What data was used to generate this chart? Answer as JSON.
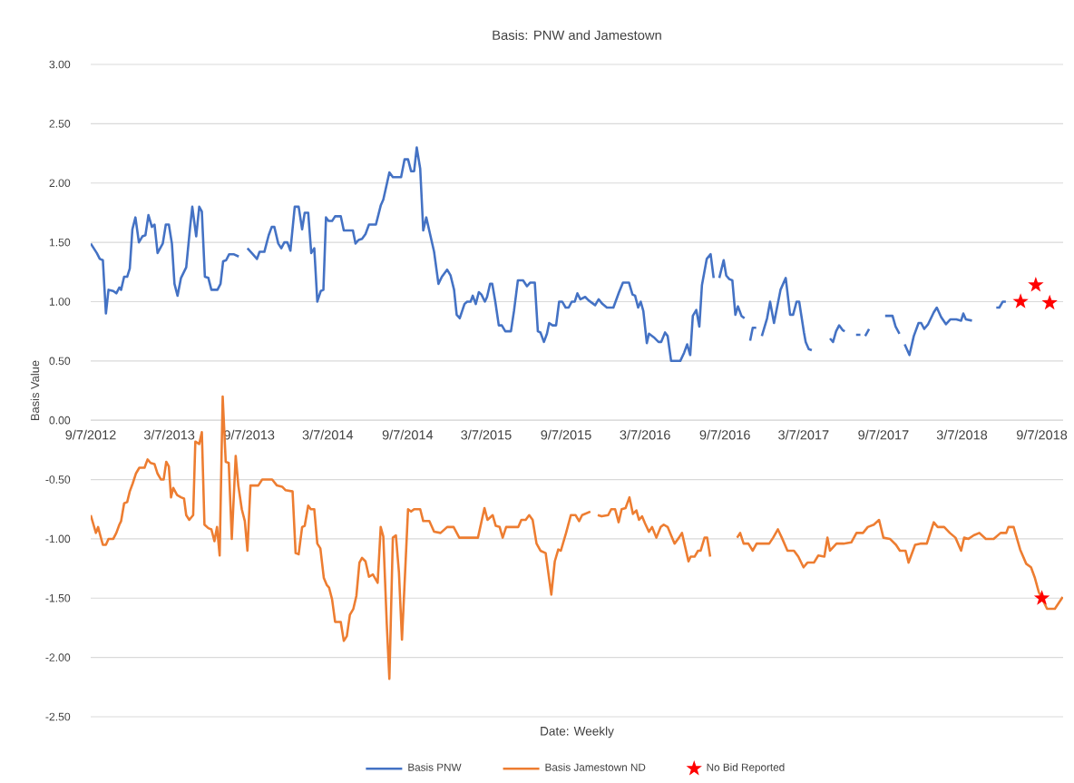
{
  "chart_data": {
    "type": "line",
    "title": "Basis: PNW and Jamestown",
    "xlabel": "Date: Weekly",
    "ylabel": "Basis Value",
    "xlim": [
      "2012-09-07",
      "2018-10-26"
    ],
    "ylim": [
      -2.5,
      3.0
    ],
    "xticks": [
      {
        "value": "2012-09-07",
        "label": "9/7/2012"
      },
      {
        "value": "2013-03-07",
        "label": "3/7/2013"
      },
      {
        "value": "2013-09-07",
        "label": "9/7/2013"
      },
      {
        "value": "2014-03-07",
        "label": "3/7/2014"
      },
      {
        "value": "2014-09-07",
        "label": "9/7/2014"
      },
      {
        "value": "2015-03-07",
        "label": "3/7/2015"
      },
      {
        "value": "2015-09-07",
        "label": "9/7/2015"
      },
      {
        "value": "2016-03-07",
        "label": "3/7/2016"
      },
      {
        "value": "2016-09-07",
        "label": "9/7/2016"
      },
      {
        "value": "2017-03-07",
        "label": "3/7/2017"
      },
      {
        "value": "2017-09-07",
        "label": "9/7/2017"
      },
      {
        "value": "2018-03-07",
        "label": "3/7/2018"
      },
      {
        "value": "2018-09-07",
        "label": "9/7/2018"
      }
    ],
    "yticks": [
      {
        "value": -2.5,
        "label": "-2.50"
      },
      {
        "value": -2.0,
        "label": "-2.00"
      },
      {
        "value": -1.5,
        "label": "-1.50"
      },
      {
        "value": -1.0,
        "label": "-1.00"
      },
      {
        "value": -0.5,
        "label": "-0.50"
      },
      {
        "value": 0,
        "label": "0.00"
      },
      {
        "value": 0.5,
        "label": "0.50"
      },
      {
        "value": 1.0,
        "label": "1.00"
      },
      {
        "value": 1.5,
        "label": "1.50"
      },
      {
        "value": 2.0,
        "label": "2.00"
      },
      {
        "value": 2.5,
        "label": "2.50"
      },
      {
        "value": 3.0,
        "label": "3.00"
      }
    ],
    "grid": "y",
    "legend": "bottom",
    "series": [
      {
        "type": "line",
        "name": "Basis PNW",
        "color": "#4472c4",
        "x": [
          "2012-09-07",
          "2012-09-21",
          "2012-09-28",
          "2012-10-05",
          "2012-10-12",
          "2012-10-18",
          "2012-10-29",
          "2012-11-05",
          "2012-11-12",
          "2012-11-16",
          "2012-11-23",
          "2012-11-30",
          "2012-12-06",
          "2012-12-12",
          "2012-12-19",
          "2012-12-27",
          "2013-01-04",
          "2013-01-11",
          "2013-01-18",
          "2013-01-26",
          "2013-02-01",
          "2013-02-08",
          "2013-02-20",
          "2013-02-27",
          "2013-03-06",
          "2013-03-13",
          "2013-03-19",
          "2013-03-26",
          "2013-04-03",
          "2013-04-15",
          "2013-04-24",
          "2013-04-29",
          "2013-05-08",
          "2013-05-15",
          "2013-05-21",
          "2013-05-28",
          "2013-06-05",
          "2013-06-12",
          "2013-06-26",
          "2013-07-03",
          "2013-07-09",
          "2013-07-16",
          "2013-07-23",
          "2013-08-02",
          "2013-08-14",
          "2013-08-28",
          "2013-09-03",
          "2013-09-13",
          "2013-09-25",
          "2013-10-01",
          "2013-10-12",
          "2013-10-22",
          "2013-10-29",
          "2013-11-04",
          "2013-11-13",
          "2013-11-20",
          "2013-11-27",
          "2013-12-04",
          "2013-12-11",
          "2013-12-21",
          "2013-12-30",
          "2014-01-07",
          "2014-01-13",
          "2014-01-21",
          "2014-01-28",
          "2014-02-04",
          "2014-02-11",
          "2014-02-19",
          "2014-02-25",
          "2014-03-03",
          "2014-03-09",
          "2014-03-17",
          "2014-03-24",
          "2014-04-06",
          "2014-04-13",
          "2014-05-04",
          "2014-05-10",
          "2014-05-17",
          "2014-05-25",
          "2014-06-02",
          "2014-06-10",
          "2014-06-26",
          "2014-07-07",
          "2014-07-13",
          "2014-07-21",
          "2014-07-27",
          "2014-08-04",
          "2014-08-23",
          "2014-08-31",
          "2014-09-08",
          "2014-09-15",
          "2014-09-22",
          "2014-09-28",
          "2014-10-06",
          "2014-10-13",
          "2014-10-20",
          "2014-11-07",
          "2014-11-17",
          "2014-11-25",
          "2014-12-07",
          "2014-12-15",
          "2014-12-23",
          "2014-12-29",
          "2015-01-05",
          "2015-01-16",
          "2015-01-22",
          "2015-01-30",
          "2015-02-04",
          "2015-02-11",
          "2015-02-18",
          "2015-02-24",
          "2015-03-04",
          "2015-03-09",
          "2015-03-16",
          "2015-03-21",
          "2015-03-28",
          "2015-04-05",
          "2015-04-12",
          "2015-04-20",
          "2015-05-03",
          "2015-05-10",
          "2015-05-19",
          "2015-05-31",
          "2015-06-09",
          "2015-06-16",
          "2015-06-27",
          "2015-07-04",
          "2015-07-10",
          "2015-07-18",
          "2015-07-25",
          "2015-07-30",
          "2015-08-07",
          "2015-08-15",
          "2015-08-22",
          "2015-08-29",
          "2015-09-06",
          "2015-09-13",
          "2015-09-20",
          "2015-09-27",
          "2015-10-03",
          "2015-10-10",
          "2015-10-21",
          "2015-10-29",
          "2015-11-13",
          "2015-11-21",
          "2015-11-30",
          "2015-12-10",
          "2015-12-25",
          "2016-01-07",
          "2016-01-16",
          "2016-01-30",
          "2016-02-07",
          "2016-02-13",
          "2016-02-20",
          "2016-02-26",
          "2016-03-03",
          "2016-03-11",
          "2016-03-16",
          "2016-03-27",
          "2016-04-07",
          "2016-04-13",
          "2016-04-22",
          "2016-04-28",
          "2016-05-06",
          "2016-05-27",
          "2016-06-05",
          "2016-06-12",
          "2016-06-19",
          "2016-06-25",
          "2016-07-03",
          "2016-07-10",
          "2016-07-16",
          "2016-07-27",
          "2016-08-05",
          "2016-08-12",
          "2016-08-19",
          "2016-08-25",
          "2016-09-04",
          "2016-09-10",
          "2016-09-17",
          "2016-09-24",
          "2016-10-01",
          "2016-10-07",
          "2016-10-15",
          "2016-10-22",
          "2016-10-29",
          "2016-11-04",
          "2016-11-10",
          "2016-11-18",
          "2016-11-25",
          "2016-12-01",
          "2016-12-13",
          "2016-12-20",
          "2016-12-29",
          "2017-01-13",
          "2017-01-25",
          "2017-02-04",
          "2017-02-11",
          "2017-02-19",
          "2017-02-25",
          "2017-03-08",
          "2017-03-12",
          "2017-03-19",
          "2017-03-26",
          "2017-04-15",
          "2017-05-07",
          "2017-05-14",
          "2017-05-21",
          "2017-05-28",
          "2017-06-05",
          "2017-06-10",
          "2017-06-24",
          "2017-07-06",
          "2017-07-16",
          "2017-07-21",
          "2017-07-27",
          "2017-08-05",
          "2017-08-25",
          "2017-09-11",
          "2017-09-28",
          "2017-10-05",
          "2017-10-14",
          "2017-10-20",
          "2017-10-26",
          "2017-11-06",
          "2017-11-16",
          "2017-11-27",
          "2017-12-03",
          "2017-12-10",
          "2017-12-19",
          "2018-01-01",
          "2018-01-08",
          "2018-01-18",
          "2018-01-29",
          "2018-02-08",
          "2018-02-22",
          "2018-03-05",
          "2018-03-10",
          "2018-03-16",
          "2018-03-30",
          "2018-04-27",
          "2018-05-25",
          "2018-06-01",
          "2018-06-09",
          "2018-06-16"
        ],
        "values": [
          1.49,
          1.41,
          1.36,
          1.35,
          0.9,
          1.1,
          1.09,
          1.07,
          1.12,
          1.1,
          1.21,
          1.21,
          1.28,
          1.61,
          1.71,
          1.5,
          1.55,
          1.56,
          1.73,
          1.63,
          1.65,
          1.41,
          1.49,
          1.65,
          1.65,
          1.49,
          1.15,
          1.05,
          1.2,
          1.29,
          1.63,
          1.8,
          1.55,
          1.8,
          1.76,
          1.21,
          1.2,
          1.1,
          1.1,
          1.15,
          1.34,
          1.35,
          1.4,
          1.4,
          1.38,
          null,
          1.45,
          1.41,
          1.36,
          1.42,
          1.42,
          1.56,
          1.63,
          1.63,
          1.49,
          1.45,
          1.5,
          1.5,
          1.43,
          1.8,
          1.8,
          1.61,
          1.75,
          1.75,
          1.41,
          1.45,
          1.0,
          1.09,
          1.1,
          1.71,
          1.68,
          1.68,
          1.72,
          1.72,
          1.6,
          1.6,
          1.49,
          1.52,
          1.53,
          1.57,
          1.65,
          1.65,
          1.81,
          1.86,
          1.99,
          2.09,
          2.05,
          2.05,
          2.2,
          2.2,
          2.1,
          2.1,
          2.3,
          2.12,
          1.6,
          1.71,
          1.42,
          1.15,
          1.21,
          1.27,
          1.22,
          1.1,
          0.89,
          0.86,
          0.98,
          1.0,
          1.0,
          1.05,
          0.98,
          1.08,
          1.06,
          1.0,
          1.04,
          1.15,
          1.15,
          1.0,
          0.8,
          0.8,
          0.75,
          0.75,
          0.92,
          1.18,
          1.18,
          1.13,
          1.16,
          1.16,
          0.75,
          0.74,
          0.66,
          0.73,
          0.82,
          0.8,
          0.8,
          1.0,
          1.0,
          0.95,
          0.95,
          1.0,
          1.0,
          1.07,
          1.02,
          1.04,
          1.01,
          0.97,
          1.02,
          0.98,
          0.95,
          0.95,
          1.08,
          1.16,
          1.16,
          1.06,
          1.05,
          0.95,
          1.0,
          0.92,
          0.65,
          0.73,
          0.7,
          0.66,
          0.66,
          0.74,
          0.71,
          0.5,
          0.5,
          0.57,
          0.64,
          0.55,
          0.88,
          0.93,
          0.79,
          1.14,
          1.36,
          1.4,
          1.2,
          null,
          1.2,
          1.35,
          1.22,
          1.19,
          1.18,
          0.89,
          0.96,
          0.88,
          0.86,
          null,
          0.67,
          0.78,
          0.78,
          null,
          0.71,
          0.86,
          1.0,
          0.82,
          1.1,
          1.2,
          0.89,
          0.89,
          1.0,
          1.0,
          0.74,
          0.66,
          0.6,
          0.59,
          null,
          0.69,
          0.66,
          0.75,
          0.8,
          0.76,
          0.75,
          null,
          0.72,
          0.72,
          null,
          0.71,
          0.77,
          null,
          0.88,
          0.88,
          0.79,
          0.73,
          null,
          0.64,
          0.55,
          0.71,
          0.82,
          0.82,
          0.77,
          0.81,
          0.91,
          0.95,
          0.87,
          0.81,
          0.85,
          0.85,
          0.84,
          0.9,
          0.85,
          0.84,
          null,
          0.95,
          0.95,
          1.0,
          1.0
        ]
      },
      {
        "type": "line",
        "name": "Basis Jamestown ND",
        "color": "#ed7d31",
        "x": [
          "2012-09-07",
          "2012-09-19",
          "2012-09-24",
          "2012-09-29",
          "2012-10-05",
          "2012-10-12",
          "2012-10-18",
          "2012-10-29",
          "2012-11-05",
          "2012-11-12",
          "2012-11-16",
          "2012-11-23",
          "2012-11-30",
          "2012-12-06",
          "2012-12-13",
          "2012-12-20",
          "2012-12-28",
          "2013-01-09",
          "2013-01-16",
          "2013-01-23",
          "2013-02-01",
          "2013-02-08",
          "2013-02-16",
          "2013-02-22",
          "2013-02-28",
          "2013-03-06",
          "2013-03-11",
          "2013-03-16",
          "2013-03-25",
          "2013-04-03",
          "2013-04-10",
          "2013-04-15",
          "2013-04-22",
          "2013-05-01",
          "2013-05-06",
          "2013-05-15",
          "2013-05-21",
          "2013-05-27",
          "2013-06-05",
          "2013-06-12",
          "2013-06-19",
          "2013-06-25",
          "2013-07-01",
          "2013-07-08",
          "2013-07-15",
          "2013-07-22",
          "2013-07-29",
          "2013-08-07",
          "2013-08-13",
          "2013-08-21",
          "2013-08-28",
          "2013-09-03",
          "2013-09-10",
          "2013-09-18",
          "2013-09-28",
          "2013-10-07",
          "2013-10-30",
          "2013-11-10",
          "2013-11-22",
          "2013-11-30",
          "2013-12-16",
          "2013-12-23",
          "2013-12-30",
          "2014-01-07",
          "2014-01-13",
          "2014-01-21",
          "2014-01-27",
          "2014-02-04",
          "2014-02-11",
          "2014-02-18",
          "2014-02-26",
          "2014-03-05",
          "2014-03-10",
          "2014-03-17",
          "2014-03-24",
          "2014-04-06",
          "2014-04-13",
          "2014-04-20",
          "2014-04-27",
          "2014-05-05",
          "2014-05-12",
          "2014-05-19",
          "2014-05-25",
          "2014-06-02",
          "2014-06-10",
          "2014-06-19",
          "2014-06-30",
          "2014-07-07",
          "2014-07-13",
          "2014-07-21",
          "2014-07-27",
          "2014-08-04",
          "2014-08-11",
          "2014-08-18",
          "2014-08-25",
          "2014-09-01",
          "2014-09-08",
          "2014-09-15",
          "2014-09-22",
          "2014-10-06",
          "2014-10-13",
          "2014-10-27",
          "2014-11-07",
          "2014-11-22",
          "2014-12-07",
          "2014-12-22",
          "2015-01-04",
          "2015-02-16",
          "2015-03-03",
          "2015-03-10",
          "2015-03-22",
          "2015-03-29",
          "2015-04-07",
          "2015-04-14",
          "2015-04-22",
          "2015-05-20",
          "2015-05-27",
          "2015-06-06",
          "2015-06-14",
          "2015-06-22",
          "2015-07-01",
          "2015-07-10",
          "2015-07-22",
          "2015-08-04",
          "2015-08-12",
          "2015-08-20",
          "2015-08-26",
          "2015-09-07",
          "2015-09-18",
          "2015-09-29",
          "2015-10-07",
          "2015-10-14",
          "2015-11-02",
          "2015-11-09",
          "2015-11-19",
          "2015-11-28",
          "2015-12-13",
          "2015-12-20",
          "2015-12-29",
          "2016-01-06",
          "2016-01-13",
          "2016-01-22",
          "2016-01-31",
          "2016-02-08",
          "2016-02-16",
          "2016-02-22",
          "2016-02-29",
          "2016-03-07",
          "2016-03-16",
          "2016-03-23",
          "2016-04-02",
          "2016-04-12",
          "2016-04-19",
          "2016-04-28",
          "2016-05-07",
          "2016-05-14",
          "2016-05-24",
          "2016-05-31",
          "2016-06-15",
          "2016-06-20",
          "2016-06-29",
          "2016-07-07",
          "2016-07-13",
          "2016-07-22",
          "2016-07-28",
          "2016-08-04",
          "2016-09-02",
          "2016-10-05",
          "2016-10-12",
          "2016-10-20",
          "2016-10-31",
          "2016-11-10",
          "2016-11-19",
          "2016-12-18",
          "2016-12-27",
          "2017-01-07",
          "2017-01-16",
          "2017-01-29",
          "2017-02-13",
          "2017-02-23",
          "2017-03-07",
          "2017-03-16",
          "2017-03-31",
          "2017-04-10",
          "2017-04-24",
          "2017-05-01",
          "2017-05-07",
          "2017-05-22",
          "2017-06-07",
          "2017-06-25",
          "2017-07-07",
          "2017-07-22",
          "2017-08-02",
          "2017-08-16",
          "2017-08-28",
          "2017-09-07",
          "2017-09-22",
          "2017-10-06",
          "2017-10-15",
          "2017-10-28",
          "2017-11-04",
          "2017-11-19",
          "2017-12-01",
          "2017-12-16",
          "2018-01-01",
          "2018-01-10",
          "2018-01-25",
          "2018-02-07",
          "2018-02-20",
          "2018-03-05",
          "2018-03-12",
          "2018-03-22",
          "2018-04-03",
          "2018-04-16",
          "2018-05-01",
          "2018-05-19",
          "2018-06-04",
          "2018-06-17",
          "2018-06-22",
          "2018-07-04",
          "2018-07-19",
          "2018-08-02",
          "2018-08-13",
          "2018-08-22",
          "2018-08-31",
          "2018-09-07",
          "2018-09-19",
          "2018-10-07",
          "2018-10-25"
        ],
        "values": [
          -0.8,
          -0.95,
          -0.9,
          -0.97,
          -1.05,
          -1.05,
          -1.0,
          -1.0,
          -0.95,
          -0.88,
          -0.85,
          -0.7,
          -0.69,
          -0.6,
          -0.53,
          -0.45,
          -0.4,
          -0.4,
          -0.33,
          -0.36,
          -0.37,
          -0.45,
          -0.5,
          -0.5,
          -0.35,
          -0.39,
          -0.65,
          -0.57,
          -0.63,
          -0.65,
          -0.66,
          -0.8,
          -0.84,
          -0.8,
          -0.18,
          -0.2,
          -0.1,
          -0.88,
          -0.91,
          -0.92,
          -1.02,
          -0.9,
          -1.14,
          0.2,
          -0.35,
          -0.36,
          -1.0,
          -0.3,
          -0.55,
          -0.75,
          -0.85,
          -1.1,
          -0.55,
          -0.55,
          -0.55,
          -0.5,
          -0.5,
          -0.55,
          -0.56,
          -0.59,
          -0.6,
          -1.12,
          -1.13,
          -0.9,
          -0.89,
          -0.72,
          -0.75,
          -0.75,
          -1.04,
          -1.08,
          -1.33,
          -1.39,
          -1.41,
          -1.51,
          -1.7,
          -1.7,
          -1.86,
          -1.82,
          -1.64,
          -1.59,
          -1.48,
          -1.2,
          -1.16,
          -1.19,
          -1.32,
          -1.3,
          -1.37,
          -0.9,
          -0.98,
          -1.72,
          -2.18,
          -0.99,
          -0.97,
          -1.28,
          -1.85,
          -1.3,
          -0.75,
          -0.77,
          -0.75,
          -0.75,
          -0.85,
          -0.85,
          -0.94,
          -0.95,
          -0.9,
          -0.9,
          -0.99,
          -0.99,
          -0.74,
          -0.84,
          -0.8,
          -0.89,
          -0.9,
          -0.99,
          -0.9,
          -0.9,
          -0.84,
          -0.84,
          -0.8,
          -0.84,
          -1.04,
          -1.1,
          -1.12,
          -1.47,
          -1.19,
          -1.09,
          -1.1,
          -0.95,
          -0.8,
          -0.8,
          -0.85,
          -0.8,
          -0.77,
          null,
          -0.8,
          -0.81,
          -0.8,
          -0.75,
          -0.75,
          -0.86,
          -0.75,
          -0.74,
          -0.65,
          -0.79,
          -0.76,
          -0.84,
          -0.81,
          -0.87,
          -0.94,
          -0.9,
          -0.99,
          -0.9,
          -0.88,
          -0.9,
          -0.98,
          -1.04,
          -0.99,
          -0.95,
          -1.19,
          -1.15,
          -1.15,
          -1.1,
          -1.1,
          -0.99,
          -0.99,
          -1.15,
          null,
          -0.99,
          -0.95,
          -1.04,
          -1.04,
          -1.1,
          -1.04,
          -1.04,
          -0.99,
          -0.92,
          -0.99,
          -1.1,
          -1.1,
          -1.15,
          -1.24,
          -1.2,
          -1.2,
          -1.14,
          -1.15,
          -0.99,
          -1.1,
          -1.04,
          -1.04,
          -1.03,
          -0.95,
          -0.95,
          -0.9,
          -0.88,
          -0.84,
          -0.99,
          -1.0,
          -1.05,
          -1.1,
          -1.1,
          -1.2,
          -1.05,
          -1.04,
          -1.04,
          -0.86,
          -0.9,
          -0.9,
          -0.95,
          -0.99,
          -1.1,
          -0.99,
          -1.0,
          -0.97,
          -0.95,
          -1.0,
          -1.0,
          -0.95,
          -0.95,
          -0.9,
          -0.9,
          -1.09,
          -1.21,
          -1.24,
          -1.33,
          -1.45,
          -1.5,
          -1.59,
          -1.59,
          -1.49
        ]
      },
      {
        "type": "scatter",
        "name": "No Bid Reported",
        "color": "#ff0000",
        "marker": "star",
        "x": [
          "2018-07-20",
          "2018-08-24",
          "2018-09-07",
          "2018-09-25"
        ],
        "values": [
          1.0,
          1.14,
          -1.5,
          0.99
        ]
      }
    ]
  }
}
